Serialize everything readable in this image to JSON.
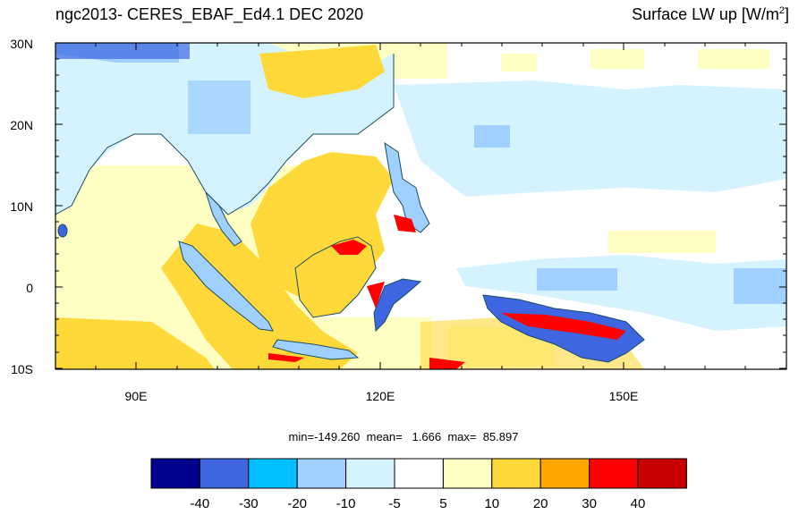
{
  "header": {
    "title_left": "ngc2013- CERES_EBAF_Ed4.1 DEC 2020",
    "title_right_main": "Surface LW up [W/m",
    "title_right_sup": "2",
    "title_right_end": "]"
  },
  "axes": {
    "lat_labels": [
      "30N",
      "20N",
      "10N",
      "0",
      "10S"
    ],
    "lon_labels": [
      "90E",
      "120E",
      "150E"
    ]
  },
  "stats": {
    "text": "min=-149.260  mean=   1.666  max=  85.897"
  },
  "colorbar": {
    "colors": [
      "#00008f",
      "#3d66e0",
      "#00bfff",
      "#9fd0ff",
      "#d5f3ff",
      "#ffffff",
      "#ffffc4",
      "#ffd93a",
      "#ffa500",
      "#ff0000",
      "#c80000"
    ],
    "labels": [
      "-40",
      "-30",
      "-20",
      "-10",
      "-5",
      "5",
      "10",
      "20",
      "30",
      "40"
    ]
  },
  "map": {
    "region": "Maritime Continent / Western Pacific",
    "lat_range": [
      -10,
      30
    ],
    "lon_range": [
      80,
      170
    ],
    "colors": {
      "ocean_light_yellow": "#ffffc4",
      "ocean_white": "#ffffff",
      "ocean_light_blue": "#d5f3ff",
      "ocean_mid_blue": "#9fd0ff",
      "land_yellow": "#ffd93a",
      "coast_red": "#ff0000",
      "coast_dark_blue": "#3d66e0",
      "coastline": "#1c4d60"
    }
  }
}
